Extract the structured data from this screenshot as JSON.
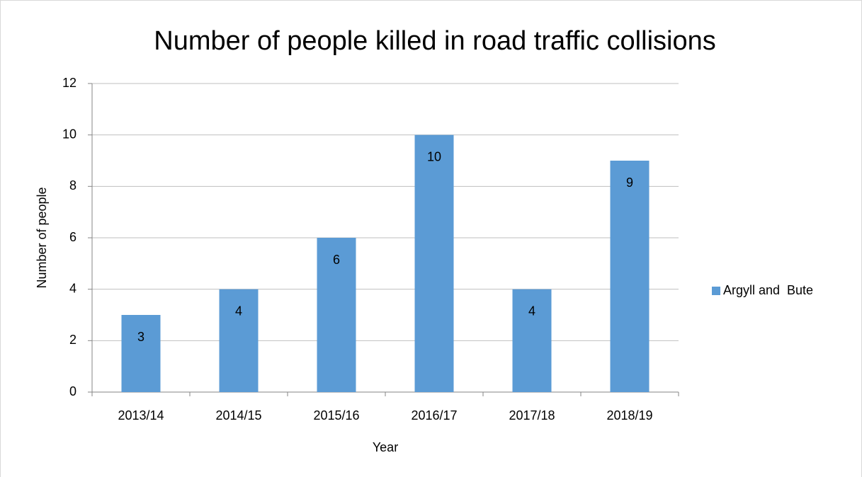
{
  "chart_data": {
    "type": "bar",
    "title": "Number of people killed in road traffic collisions",
    "x_label": "Year",
    "y_label": "Number of people",
    "categories": [
      "2013/14",
      "2014/15",
      "2015/16",
      "2016/17",
      "2017/18",
      "2018/19"
    ],
    "series": [
      {
        "name": "Argyll and  Bute",
        "color": "#5b9bd5",
        "values": [
          3,
          4,
          6,
          10,
          4,
          9
        ]
      }
    ],
    "ylim": [
      0,
      12
    ],
    "yticks": [
      0,
      2,
      4,
      6,
      8,
      10,
      12
    ],
    "grid": true,
    "legend": "right"
  }
}
